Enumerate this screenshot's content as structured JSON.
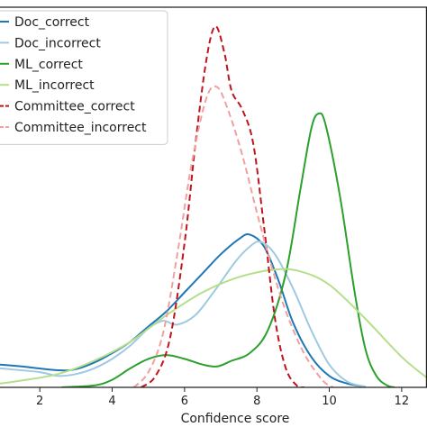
{
  "chart_data": {
    "type": "line",
    "title": "",
    "xlabel": "Confidence score",
    "ylabel": "",
    "xlim": [
      0.9,
      12.7
    ],
    "ylim": [
      0,
      1.0
    ],
    "xticks": [
      2,
      4,
      6,
      8,
      10,
      12
    ],
    "grid": false,
    "legend_position": "upper-left",
    "series": [
      {
        "name": "Doc_correct",
        "color": "#1f77b4",
        "dash": "solid",
        "points": [
          [
            0.9,
            0.06
          ],
          [
            1.5,
            0.055
          ],
          [
            2.5,
            0.045
          ],
          [
            3.0,
            0.048
          ],
          [
            3.5,
            0.065
          ],
          [
            4.0,
            0.09
          ],
          [
            4.5,
            0.12
          ],
          [
            5.0,
            0.16
          ],
          [
            5.5,
            0.2
          ],
          [
            6.0,
            0.25
          ],
          [
            6.5,
            0.3
          ],
          [
            7.0,
            0.35
          ],
          [
            7.5,
            0.39
          ],
          [
            7.8,
            0.402
          ],
          [
            8.2,
            0.37
          ],
          [
            8.6,
            0.28
          ],
          [
            9.0,
            0.17
          ],
          [
            9.5,
            0.08
          ],
          [
            10.0,
            0.03
          ],
          [
            10.5,
            0.01
          ],
          [
            11.0,
            0.002
          ]
        ]
      },
      {
        "name": "Doc_incorrect",
        "color": "#9ecae1",
        "dash": "solid",
        "points": [
          [
            0.9,
            0.05
          ],
          [
            2.0,
            0.04
          ],
          [
            2.5,
            0.03
          ],
          [
            3.0,
            0.035
          ],
          [
            3.5,
            0.05
          ],
          [
            4.0,
            0.075
          ],
          [
            4.5,
            0.11
          ],
          [
            5.0,
            0.155
          ],
          [
            5.4,
            0.175
          ],
          [
            5.8,
            0.165
          ],
          [
            6.3,
            0.19
          ],
          [
            6.8,
            0.25
          ],
          [
            7.4,
            0.33
          ],
          [
            7.8,
            0.37
          ],
          [
            8.1,
            0.383
          ],
          [
            8.5,
            0.35
          ],
          [
            9.0,
            0.26
          ],
          [
            9.5,
            0.15
          ],
          [
            10.0,
            0.06
          ],
          [
            10.5,
            0.015
          ],
          [
            11.0,
            0.002
          ]
        ]
      },
      {
        "name": "ML_correct",
        "color": "#2ca02c",
        "dash": "solid",
        "points": [
          [
            2.6,
            0.0
          ],
          [
            3.5,
            0.005
          ],
          [
            4.0,
            0.02
          ],
          [
            4.5,
            0.05
          ],
          [
            5.0,
            0.075
          ],
          [
            5.5,
            0.085
          ],
          [
            6.0,
            0.075
          ],
          [
            6.5,
            0.06
          ],
          [
            6.9,
            0.055
          ],
          [
            7.3,
            0.07
          ],
          [
            7.8,
            0.09
          ],
          [
            8.3,
            0.15
          ],
          [
            8.8,
            0.3
          ],
          [
            9.2,
            0.52
          ],
          [
            9.5,
            0.68
          ],
          [
            9.7,
            0.72
          ],
          [
            9.9,
            0.69
          ],
          [
            10.3,
            0.5
          ],
          [
            10.7,
            0.25
          ],
          [
            11.0,
            0.1
          ],
          [
            11.3,
            0.03
          ],
          [
            11.6,
            0.005
          ],
          [
            11.8,
            0.0
          ]
        ]
      },
      {
        "name": "ML_incorrect",
        "color": "#b5df8a",
        "dash": "solid",
        "points": [
          [
            0.9,
            0.01
          ],
          [
            1.5,
            0.018
          ],
          [
            2.5,
            0.035
          ],
          [
            3.5,
            0.07
          ],
          [
            4.5,
            0.12
          ],
          [
            5.5,
            0.19
          ],
          [
            6.5,
            0.25
          ],
          [
            7.5,
            0.29
          ],
          [
            8.5,
            0.31
          ],
          [
            9.2,
            0.305
          ],
          [
            10.0,
            0.27
          ],
          [
            11.0,
            0.18
          ],
          [
            12.0,
            0.08
          ],
          [
            12.7,
            0.025
          ]
        ]
      },
      {
        "name": "Committee_correct",
        "color": "#c0141c",
        "dash": "dashed",
        "points": [
          [
            4.8,
            0.0
          ],
          [
            5.2,
            0.03
          ],
          [
            5.6,
            0.13
          ],
          [
            6.0,
            0.38
          ],
          [
            6.3,
            0.64
          ],
          [
            6.6,
            0.86
          ],
          [
            6.85,
            0.95
          ],
          [
            7.1,
            0.88
          ],
          [
            7.3,
            0.78
          ],
          [
            7.6,
            0.73
          ],
          [
            7.9,
            0.64
          ],
          [
            8.2,
            0.42
          ],
          [
            8.5,
            0.18
          ],
          [
            8.8,
            0.05
          ],
          [
            9.1,
            0.005
          ],
          [
            9.3,
            0.0
          ]
        ]
      },
      {
        "name": "Committee_incorrect",
        "color": "#f0a0a0",
        "dash": "dashed",
        "points": [
          [
            4.6,
            0.0
          ],
          [
            5.0,
            0.04
          ],
          [
            5.4,
            0.14
          ],
          [
            5.8,
            0.35
          ],
          [
            6.2,
            0.59
          ],
          [
            6.6,
            0.76
          ],
          [
            6.9,
            0.79
          ],
          [
            7.2,
            0.73
          ],
          [
            7.6,
            0.61
          ],
          [
            8.0,
            0.46
          ],
          [
            8.4,
            0.32
          ],
          [
            8.8,
            0.2
          ],
          [
            9.3,
            0.09
          ],
          [
            9.8,
            0.02
          ],
          [
            10.1,
            0.0
          ]
        ]
      }
    ]
  }
}
